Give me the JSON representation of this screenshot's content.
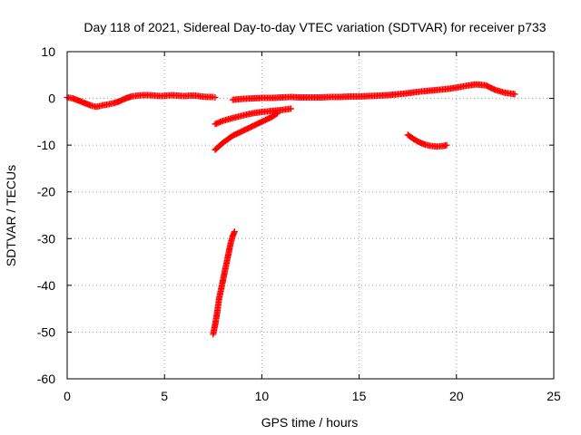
{
  "chart_data": {
    "type": "scatter",
    "title": "Day 118 of 2021, Sidereal Day-to-day VTEC variation (SDTVAR) for receiver p733",
    "xlabel": "GPS time / hours",
    "ylabel": "SDTVAR / TECUs",
    "xlim": [
      0,
      25
    ],
    "ylim": [
      -60,
      10
    ],
    "xticks": [
      0,
      5,
      10,
      15,
      20,
      25
    ],
    "yticks": [
      10,
      0,
      -10,
      -20,
      -30,
      -40,
      -50,
      -60
    ],
    "grid": true,
    "marker": "plus",
    "color": "#ff0000",
    "series": [
      {
        "x": [
          0.0,
          0.3,
          0.6,
          0.9,
          1.2,
          1.5,
          1.8,
          2.1,
          2.4,
          2.7,
          3.0,
          3.3,
          3.6,
          3.9,
          4.2,
          4.5,
          4.8,
          5.1,
          5.4,
          5.7,
          6.0,
          6.3,
          6.6,
          6.9,
          7.2,
          7.5,
          7.6
        ],
        "y": [
          0.2,
          0.0,
          -0.5,
          -1.0,
          -1.5,
          -1.8,
          -1.5,
          -1.3,
          -1.0,
          -0.6,
          0.0,
          0.4,
          0.6,
          0.7,
          0.7,
          0.6,
          0.5,
          0.6,
          0.7,
          0.6,
          0.5,
          0.6,
          0.6,
          0.4,
          0.3,
          0.3,
          0.2
        ]
      },
      {
        "x": [
          8.5,
          9.0,
          9.5,
          10.0,
          10.5,
          11.0,
          11.5,
          12.0,
          12.5,
          13.0,
          13.5,
          14.0,
          14.5,
          15.0,
          15.5,
          16.0,
          16.5,
          17.0,
          17.5,
          18.0,
          18.5,
          19.0,
          19.5,
          20.0,
          20.5,
          21.0,
          21.5,
          22.0,
          22.5,
          23.0
        ],
        "y": [
          -0.3,
          -0.1,
          0.0,
          0.1,
          0.1,
          0.2,
          0.3,
          0.2,
          0.2,
          0.2,
          0.3,
          0.3,
          0.4,
          0.4,
          0.5,
          0.6,
          0.7,
          0.9,
          1.1,
          1.4,
          1.6,
          1.8,
          2.0,
          2.3,
          2.7,
          3.0,
          2.8,
          1.8,
          1.2,
          0.9
        ]
      },
      {
        "x": [
          7.6,
          8.0,
          8.5,
          9.0,
          9.5,
          10.0,
          10.5,
          11.0,
          11.5
        ],
        "y": [
          -5.5,
          -4.8,
          -4.2,
          -3.7,
          -3.2,
          -2.9,
          -2.7,
          -2.5,
          -2.2
        ]
      },
      {
        "x": [
          7.6,
          8.0,
          8.5,
          9.0,
          9.5,
          10.0,
          10.5,
          10.8
        ],
        "y": [
          -11.0,
          -9.5,
          -8.0,
          -7.0,
          -6.0,
          -5.0,
          -4.0,
          -3.2
        ]
      },
      {
        "x": [
          17.5,
          17.8,
          18.1,
          18.4,
          18.7,
          19.0,
          19.3,
          19.5
        ],
        "y": [
          -7.8,
          -8.7,
          -9.4,
          -9.9,
          -10.2,
          -10.3,
          -10.2,
          -10.0
        ]
      },
      {
        "x": [
          7.5,
          7.6,
          7.7,
          7.8,
          7.9,
          8.0,
          8.1,
          8.2,
          8.3,
          8.4,
          8.5,
          8.6
        ],
        "y": [
          -50.5,
          -48.5,
          -46.0,
          -43.0,
          -41.0,
          -39.0,
          -37.0,
          -35.0,
          -33.0,
          -31.0,
          -29.5,
          -28.5
        ]
      }
    ]
  }
}
